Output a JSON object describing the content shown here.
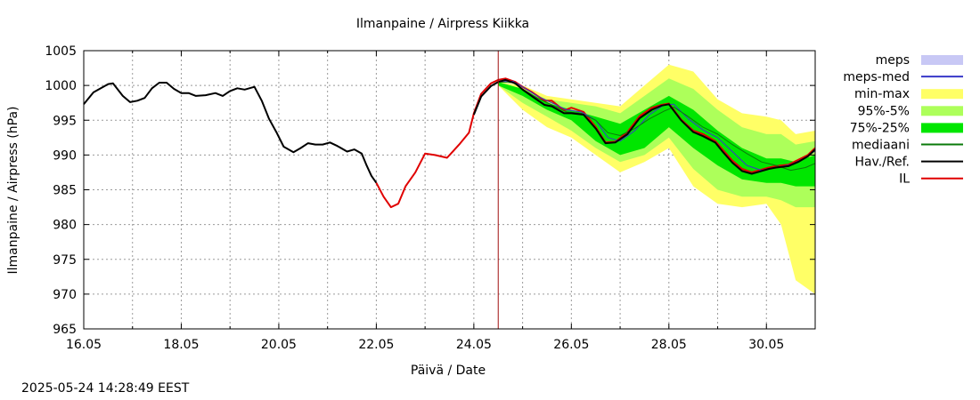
{
  "timestamp": "2025-05-24 14:28:49 EEST",
  "chart_data": {
    "type": "line",
    "title": "Ilmanpaine / Airpress Kiikka",
    "xlabel": "Päivä / Date",
    "ylabel": "Ilmanpaine / Airpress (hPa)",
    "xlim": [
      "16.05",
      "31.05"
    ],
    "xlim_days": [
      16.0,
      31.0
    ],
    "ylim": [
      965,
      1005
    ],
    "yticks": [
      965,
      970,
      975,
      980,
      985,
      990,
      995,
      1000,
      1005
    ],
    "xticks": [
      {
        "label": "16.05",
        "day": 16
      },
      {
        "label": "18.05",
        "day": 18
      },
      {
        "label": "20.05",
        "day": 20
      },
      {
        "label": "22.05",
        "day": 22
      },
      {
        "label": "24.05",
        "day": 24
      },
      {
        "label": "26.05",
        "day": 26
      },
      {
        "label": "28.05",
        "day": 28
      },
      {
        "label": "30.05",
        "day": 30
      }
    ],
    "grid": true,
    "legend_position": "right",
    "forecast_start_day": 24.5,
    "legend": [
      {
        "label": "meps",
        "kind": "box",
        "color": "#c8c8f5"
      },
      {
        "label": "meps-med",
        "kind": "line",
        "color": "#3838c8"
      },
      {
        "label": "min-max",
        "kind": "box",
        "color": "#ffff66"
      },
      {
        "label": "95%-5%",
        "kind": "box",
        "color": "#adff5a"
      },
      {
        "label": "75%-25%",
        "kind": "box",
        "color": "#00e600"
      },
      {
        "label": "mediaani",
        "kind": "line",
        "color": "#0a7a0a"
      },
      {
        "label": "Hav./Ref.",
        "kind": "line",
        "color": "#000000"
      },
      {
        "label": "IL",
        "kind": "line",
        "color": "#e00000"
      }
    ],
    "bands": [
      {
        "name": "min-max",
        "color": "#ffff66",
        "x": [
          24.5,
          25.0,
          25.5,
          26.0,
          26.5,
          27.0,
          27.5,
          28.0,
          28.5,
          29.0,
          29.5,
          30.0,
          30.3,
          30.6,
          31.0
        ],
        "lower": [
          1000.0,
          996.5,
          994.0,
          992.5,
          990.0,
          987.5,
          989.0,
          991.0,
          985.5,
          983.0,
          982.5,
          983.0,
          980.0,
          972.0,
          970.0
        ],
        "upper": [
          1000.5,
          1000.0,
          998.5,
          998.0,
          997.5,
          997.0,
          1000.0,
          1003.0,
          1002.0,
          998.0,
          996.0,
          995.5,
          995.0,
          993.0,
          993.5
        ]
      },
      {
        "name": "95%-5%",
        "color": "#adff5a",
        "x": [
          24.5,
          25.0,
          25.5,
          26.0,
          26.5,
          27.0,
          27.5,
          28.0,
          28.5,
          29.0,
          29.5,
          30.0,
          30.3,
          30.6,
          31.0
        ],
        "lower": [
          1000.0,
          997.5,
          995.5,
          993.5,
          991.0,
          989.0,
          990.0,
          992.5,
          988.0,
          985.0,
          984.0,
          984.0,
          983.5,
          982.5,
          982.5
        ],
        "upper": [
          1000.5,
          999.5,
          998.0,
          997.5,
          997.0,
          996.0,
          998.5,
          1001.0,
          999.5,
          996.5,
          994.0,
          993.0,
          993.0,
          991.5,
          992.0
        ]
      },
      {
        "name": "75%-25%",
        "color": "#00e600",
        "x": [
          24.5,
          25.0,
          25.5,
          26.0,
          26.5,
          27.0,
          27.5,
          28.0,
          28.5,
          29.0,
          29.5,
          30.0,
          30.3,
          30.6,
          31.0
        ],
        "lower": [
          1000.0,
          998.5,
          996.5,
          995.0,
          992.0,
          990.0,
          991.0,
          994.0,
          991.0,
          988.5,
          986.5,
          986.0,
          986.0,
          985.5,
          985.5
        ],
        "upper": [
          1000.5,
          999.5,
          997.5,
          996.5,
          995.5,
          994.5,
          996.5,
          998.5,
          996.5,
          993.5,
          991.0,
          989.5,
          989.5,
          989.0,
          990.0
        ]
      }
    ],
    "series": [
      {
        "name": "Hav./Ref.",
        "color": "#000000",
        "width": 2,
        "x": [
          16.0,
          16.2,
          16.5,
          16.6,
          16.8,
          16.95,
          17.1,
          17.25,
          17.4,
          17.55,
          17.7,
          17.85,
          18.0,
          18.15,
          18.3,
          18.5,
          18.7,
          18.85,
          19.0,
          19.15,
          19.3,
          19.5,
          19.65,
          19.8,
          19.95,
          20.1,
          20.3,
          20.45,
          20.6,
          20.75,
          20.9,
          21.05,
          21.2,
          21.4,
          21.55,
          21.7,
          21.8,
          21.9,
          22.0
        ],
        "y": [
          997.3,
          999.0,
          1000.2,
          1000.3,
          998.5,
          997.6,
          997.8,
          998.2,
          999.6,
          1000.4,
          1000.4,
          999.5,
          998.9,
          998.9,
          998.5,
          998.6,
          998.9,
          998.5,
          999.2,
          999.6,
          999.4,
          999.8,
          997.8,
          995.2,
          993.3,
          991.2,
          990.4,
          991.0,
          991.7,
          991.5,
          991.5,
          991.8,
          991.3,
          990.5,
          990.8,
          990.2,
          988.5,
          987.0,
          986.0
        ]
      },
      {
        "name": "IL",
        "color": "#e00000",
        "width": 2,
        "x": [
          22.0,
          22.15,
          22.3,
          22.45,
          22.6,
          22.8,
          23.0,
          23.2,
          23.45,
          23.7,
          23.9,
          24.0,
          24.15,
          24.35,
          24.5,
          24.65,
          24.85,
          25.0,
          25.2,
          25.45,
          25.6,
          25.85,
          26.0,
          26.25,
          26.5,
          26.7,
          26.9,
          27.15,
          27.4,
          27.65,
          27.85,
          28.0,
          28.25,
          28.5,
          28.7,
          28.95,
          29.1,
          29.3,
          29.5,
          29.7,
          29.85,
          30.05,
          30.2,
          30.45,
          30.65,
          30.85,
          31.0
        ],
        "y": [
          986.0,
          984.0,
          982.5,
          983.0,
          985.5,
          987.5,
          990.2,
          990.0,
          989.6,
          991.5,
          993.2,
          996.0,
          998.8,
          1000.3,
          1000.8,
          1001.0,
          1000.5,
          999.8,
          999.0,
          997.8,
          997.8,
          996.4,
          996.8,
          996.2,
          994.0,
          991.8,
          991.9,
          993.3,
          995.6,
          996.8,
          997.2,
          997.4,
          995.1,
          993.5,
          993.0,
          992.0,
          990.8,
          989.2,
          988.0,
          987.5,
          987.8,
          988.2,
          988.4,
          988.6,
          989.3,
          990.0,
          991.0
        ]
      },
      {
        "name": "meps-med",
        "color": "#3838c8",
        "width": 1,
        "x": [
          24.5,
          24.8,
          25.0,
          25.3,
          25.6,
          25.9,
          26.2,
          26.5,
          26.75,
          27.0,
          27.3,
          27.6,
          27.9,
          28.1,
          28.4,
          28.7,
          29.0,
          29.3,
          29.6,
          29.9,
          30.2,
          30.5,
          30.8,
          31.0
        ],
        "y": [
          1000.6,
          1000.6,
          999.8,
          998.5,
          997.5,
          996.5,
          996.2,
          995.0,
          992.5,
          992.0,
          993.5,
          995.8,
          997.2,
          997.3,
          995.2,
          993.6,
          992.5,
          990.5,
          988.5,
          987.8,
          988.2,
          988.6,
          989.6,
          990.6
        ]
      },
      {
        "name": "mediaani",
        "color": "#0a7a0a",
        "width": 1,
        "x": [
          24.5,
          24.8,
          25.0,
          25.3,
          25.6,
          25.9,
          26.2,
          26.5,
          26.75,
          27.0,
          27.3,
          27.6,
          27.9,
          28.1,
          28.4,
          28.7,
          29.0,
          29.3,
          29.6,
          29.9,
          30.2,
          30.5,
          30.8,
          31.0
        ],
        "y": [
          1000.5,
          1000.4,
          999.5,
          998.2,
          997.2,
          996.2,
          996.0,
          995.0,
          993.2,
          992.8,
          993.8,
          995.2,
          996.3,
          996.9,
          995.5,
          994.0,
          993.0,
          991.5,
          990.2,
          989.0,
          988.5,
          987.8,
          988.2,
          988.8
        ]
      },
      {
        "name": "Hav./Ref.",
        "color": "#000000",
        "width": 2,
        "x": [
          24.0,
          24.15,
          24.35,
          24.5,
          24.65,
          24.85,
          25.0,
          25.2,
          25.45,
          25.6,
          25.85,
          26.0,
          26.25,
          26.5,
          26.7,
          26.9,
          27.15,
          27.4,
          27.65,
          27.85,
          28.0,
          28.25,
          28.5,
          28.7,
          28.95,
          29.1,
          29.3,
          29.5,
          29.7,
          29.85,
          30.05,
          30.2,
          30.45,
          30.65,
          30.85,
          31.0
        ],
        "y": [
          995.8,
          998.4,
          999.9,
          1000.5,
          1000.8,
          1000.3,
          999.4,
          998.4,
          997.2,
          997.0,
          996.0,
          996.0,
          995.8,
          993.8,
          991.7,
          991.8,
          993.0,
          995.3,
          996.5,
          997.1,
          997.3,
          995.0,
          993.3,
          992.7,
          991.8,
          990.5,
          988.9,
          987.7,
          987.3,
          987.6,
          988.0,
          988.2,
          988.4,
          989.0,
          989.8,
          990.8
        ]
      }
    ]
  }
}
